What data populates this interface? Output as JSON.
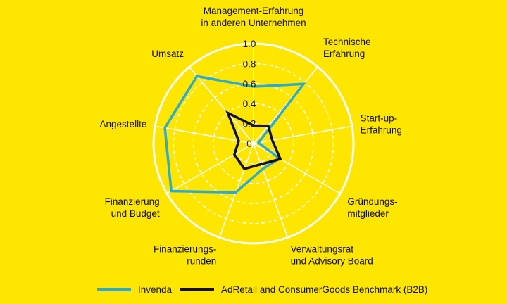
{
  "colors": {
    "background": "#FFE600",
    "grid": "#FFFFFF",
    "invenda": "#29ABD4",
    "benchmark": "#111111"
  },
  "chart_data": {
    "type": "radar",
    "rlim": [
      0,
      1.0
    ],
    "ticks": [
      "0",
      "0.2",
      "0.4",
      "0.6",
      "0.8",
      "1.0"
    ],
    "tick_values": [
      0,
      0.2,
      0.4,
      0.6,
      0.8,
      1.0
    ],
    "grid": true,
    "legend_position": "bottom",
    "axes": [
      [
        "Management-Erfahrung",
        "in anderen Unternehmen"
      ],
      [
        "Technische",
        "Erfahrung"
      ],
      [
        "Start-up-",
        "Erfahrung"
      ],
      [
        "Gründungs-",
        "mitglieder"
      ],
      [
        "Verwaltungsrat",
        "und Advisory Board"
      ],
      [
        "Finanzierungs-",
        "runden"
      ],
      [
        "Finanzierung",
        "und Budget"
      ],
      [
        "Angestellte"
      ],
      [
        "Umsatz"
      ]
    ],
    "series": [
      {
        "name": "Invenda",
        "color": "#29ABD4",
        "values": [
          0.57,
          0.78,
          0.05,
          0.3,
          0.27,
          0.52,
          0.95,
          0.9,
          0.88
        ]
      },
      {
        "name": "AdRetail and ConsumerGoods Benchmark (B2B)",
        "color": "#111111",
        "values": [
          0.18,
          0.23,
          0.19,
          0.31,
          0.22,
          0.27,
          0.22,
          0.15,
          0.4
        ]
      }
    ]
  }
}
